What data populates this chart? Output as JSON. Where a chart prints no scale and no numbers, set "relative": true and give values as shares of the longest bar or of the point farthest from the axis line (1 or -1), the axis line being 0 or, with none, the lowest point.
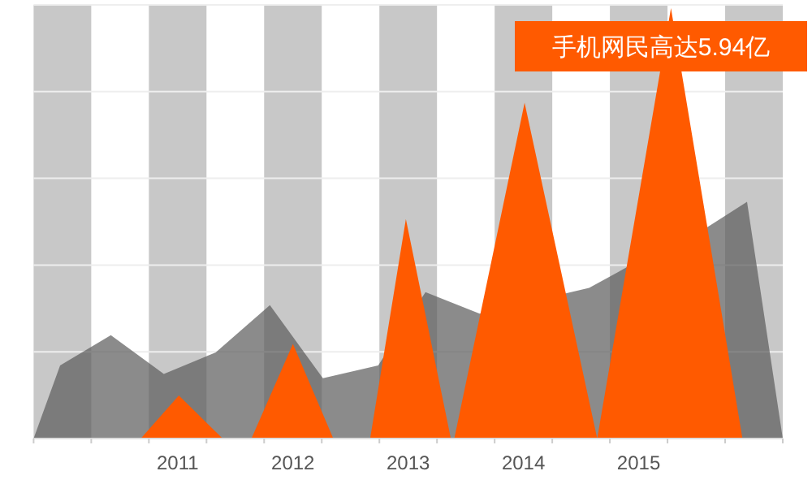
{
  "chart_data": {
    "type": "area",
    "relative": true,
    "series": [
      {
        "color": "#5a5a5a",
        "x": [
          2009.75,
          2009.98,
          2010.42,
          2010.88,
          2011.33,
          2011.8,
          2012.26,
          2012.74,
          2013.15,
          2013.62,
          2014.57,
          2014.91,
          2015.59,
          2015.94,
          2016.25
        ],
        "values": [
          0,
          0.17,
          0.24,
          0.15,
          0.2,
          0.31,
          0.14,
          0.17,
          0.34,
          0.29,
          0.35,
          0.4,
          0.49,
          0.55,
          0
        ]
      },
      {
        "color": "#ff5a00",
        "x": [
          2010.68,
          2011.01,
          2011.39,
          2011.64,
          2012.0,
          2012.35,
          2012.67,
          2012.98,
          2013.37,
          2013.4,
          2014.01,
          2014.64,
          2015.28,
          2015.9
        ],
        "values": [
          0,
          0.1,
          0,
          0,
          0.22,
          0,
          0,
          0.51,
          0,
          0,
          0.78,
          0,
          1,
          0
        ]
      }
    ],
    "xlim": [
      2009.75,
      2016.25
    ],
    "xticks": [
      {
        "value": 2009.75,
        "label": null
      },
      {
        "value": 2010.25,
        "label": null
      },
      {
        "value": 2010.75,
        "label": null
      },
      2011,
      {
        "value": 2011.25,
        "label": null
      },
      {
        "value": 2011.75,
        "label": null
      },
      2012,
      {
        "value": 2012.25,
        "label": null
      },
      {
        "value": 2012.75,
        "label": null
      },
      2013,
      {
        "value": 2013.25,
        "label": null
      },
      {
        "value": 2013.75,
        "label": null
      },
      2014,
      {
        "value": 2014.25,
        "label": null
      },
      {
        "value": 2014.75,
        "label": null
      },
      2015,
      {
        "value": 2015.25,
        "label": null
      },
      {
        "value": 2015.75,
        "label": null
      },
      {
        "value": 2016.25,
        "label": null
      }
    ],
    "bands": [
      {
        "axis": "x",
        "from": 2009.75,
        "to": 2010.25,
        "color": "#c8c8c8"
      },
      {
        "axis": "x",
        "from": 2010.75,
        "to": 2011.25,
        "color": "#c8c8c8"
      },
      {
        "axis": "x",
        "from": 2011.75,
        "to": 2012.25,
        "color": "#c8c8c8"
      },
      {
        "axis": "x",
        "from": 2012.75,
        "to": 2013.25,
        "color": "#c8c8c8"
      },
      {
        "axis": "x",
        "from": 2013.75,
        "to": 2014.25,
        "color": "#c8c8c8"
      },
      {
        "axis": "x",
        "from": 2014.75,
        "to": 2015.25,
        "color": "#c8c8c8"
      },
      {
        "axis": "x",
        "from": 2015.75,
        "to": 2016.25,
        "color": "#c8c8c8"
      }
    ],
    "grid": "y",
    "annotations": [
      "手机网民高达5.94亿"
    ]
  }
}
